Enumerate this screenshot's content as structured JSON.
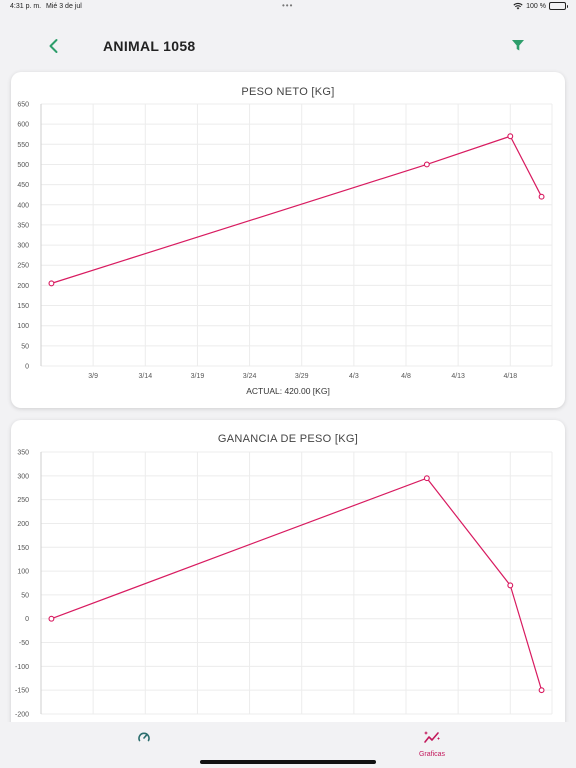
{
  "status_bar": {
    "time": "4:31 p. m.",
    "date": "Mié 3 de jul",
    "battery": "100 %"
  },
  "header": {
    "title": "ANIMAL 1058",
    "back_icon": "chevron-left-icon",
    "filter_icon": "filter-icon"
  },
  "colors": {
    "accent": "#2e9e6b",
    "series": "#d81b60",
    "tab_active": "#c2185b",
    "tab_inactive": "#2c6e6e"
  },
  "chart_data": [
    {
      "type": "line",
      "title": "PESO NETO [KG]",
      "x_ticks": [
        "3/9",
        "3/14",
        "3/19",
        "3/24",
        "3/29",
        "4/3",
        "4/8",
        "4/13",
        "4/18"
      ],
      "x": [
        "3/5",
        "4/10",
        "4/18",
        "4/21"
      ],
      "y": [
        205,
        500,
        570,
        420
      ],
      "ylim": [
        0,
        650
      ],
      "y_ticks": [
        0,
        50,
        100,
        150,
        200,
        250,
        300,
        350,
        400,
        450,
        500,
        550,
        600,
        650
      ],
      "grid": true,
      "footer": "ACTUAL: 420.00 [KG]"
    },
    {
      "type": "line",
      "title": "GANANCIA DE PESO [KG]",
      "x": [
        "3/5",
        "4/10",
        "4/18",
        "4/21"
      ],
      "y": [
        0,
        295,
        70,
        -150
      ],
      "ylim": [
        -200,
        350
      ],
      "y_ticks": [
        -200,
        -150,
        -100,
        -50,
        0,
        50,
        100,
        150,
        200,
        250,
        300,
        350
      ],
      "grid": true
    }
  ],
  "tabs": [
    {
      "label": "",
      "icon": "speedometer-icon",
      "active": false
    },
    {
      "label": "Graficas",
      "icon": "chart-sparkle-icon",
      "active": true
    }
  ]
}
